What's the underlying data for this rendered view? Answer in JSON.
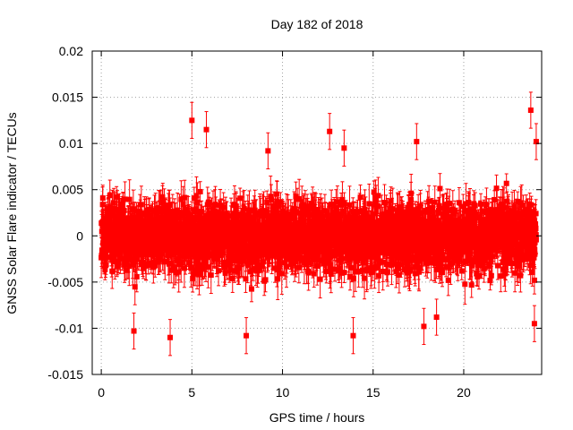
{
  "chart_data": {
    "type": "scatter",
    "title": "Day 182 of 2018",
    "xlabel": "GPS time / hours",
    "ylabel": "GNSS Solar Flare indicator / TECUs",
    "xlim": [
      -0.5,
      24.3
    ],
    "ylim": [
      -0.015,
      0.02
    ],
    "xticks": [
      0,
      5,
      10,
      15,
      20
    ],
    "xtick_labels": [
      "0",
      "5",
      "10",
      "15",
      "20"
    ],
    "yticks": [
      -0.015,
      -0.01,
      -0.005,
      0,
      0.005,
      0.01,
      0.015,
      0.02
    ],
    "ytick_labels": [
      "-0.015",
      "-0.01",
      "-0.005",
      "0",
      "0.005",
      "0.01",
      "0.015",
      "0.02"
    ],
    "grid": true,
    "series": [
      {
        "name": "GNSS Solar Flare indicator",
        "color": "#ff0000",
        "marker": "square",
        "error_bars": true,
        "x_start": 0,
        "x_end": 24,
        "n_points": 2880,
        "typical_spread": 0.003,
        "typical_error": 0.0015,
        "notable_points": [
          {
            "x": 1.8,
            "y": -0.0103
          },
          {
            "x": 3.8,
            "y": -0.011
          },
          {
            "x": 5.0,
            "y": 0.0125
          },
          {
            "x": 5.8,
            "y": 0.0115
          },
          {
            "x": 8.0,
            "y": -0.0108
          },
          {
            "x": 9.2,
            "y": 0.0092
          },
          {
            "x": 12.6,
            "y": 0.0113
          },
          {
            "x": 13.4,
            "y": 0.0095
          },
          {
            "x": 13.9,
            "y": -0.0108
          },
          {
            "x": 17.4,
            "y": 0.0102
          },
          {
            "x": 17.8,
            "y": -0.0098
          },
          {
            "x": 18.5,
            "y": -0.0088
          },
          {
            "x": 23.7,
            "y": 0.0136
          },
          {
            "x": 24.0,
            "y": 0.0102
          },
          {
            "x": 23.9,
            "y": -0.0095
          }
        ]
      }
    ]
  }
}
